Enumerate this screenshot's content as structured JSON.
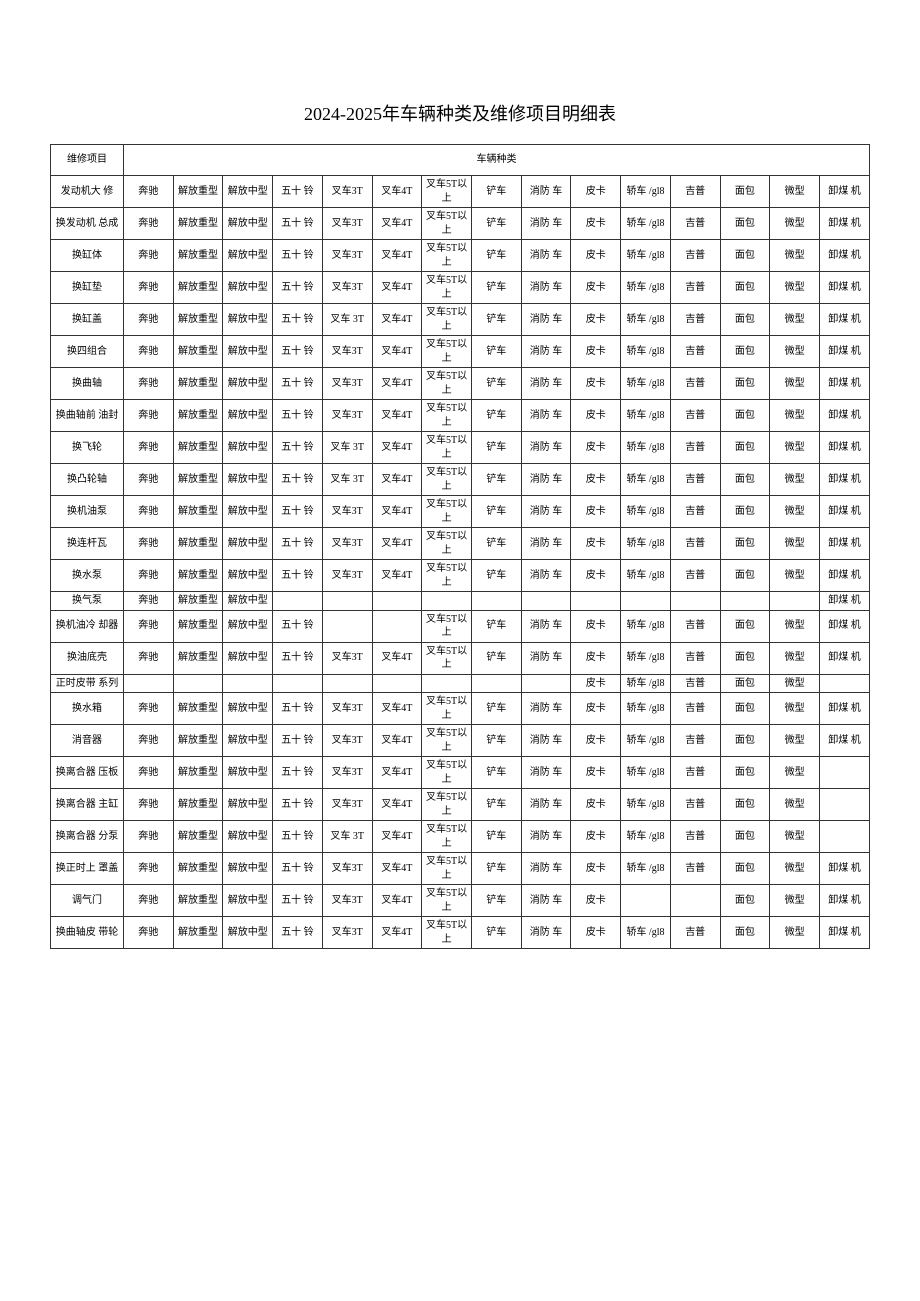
{
  "title": "2024-2025年车辆种类及维修项目明细表",
  "header": {
    "item": "维修项目",
    "category": "车辆种类"
  },
  "vehicles": [
    "奔驰",
    "解放重型",
    "解放中型",
    "五十 铃",
    "叉车3T",
    "叉车4T",
    "叉车5T以上",
    "铲车",
    "消防 车",
    "皮卡",
    "轿车 /gl8",
    "吉普",
    "面包",
    "微型",
    "卸煤 机"
  ],
  "rows": [
    {
      "name": "发动机大 修",
      "v": [
        "奔驰",
        "解放重型",
        "解放中型",
        "五十 铃",
        "叉车3T",
        "叉车4T",
        "叉车5T以上",
        "铲车",
        "消防 车",
        "皮卡",
        "轿车 /gl8",
        "吉普",
        "面包",
        "微型",
        "卸煤 机"
      ]
    },
    {
      "name": "换发动机 总成",
      "v": [
        "奔驰",
        "解放重型",
        "解放中型",
        "五十 铃",
        "叉车3T",
        "叉车4T",
        "叉车5T以上",
        "铲车",
        "消防 车",
        "皮卡",
        "轿车 /gl8",
        "吉普",
        "面包",
        "微型",
        "卸煤 机"
      ]
    },
    {
      "name": "换缸体",
      "v": [
        "奔驰",
        "解放重型",
        "解放中型",
        "五十 铃",
        "叉车3T",
        "叉车4T",
        "叉车5T以上",
        "铲车",
        "消防 车",
        "皮卡",
        "轿车 /gl8",
        "吉普",
        "面包",
        "微型",
        "卸煤 机"
      ]
    },
    {
      "name": "换缸垫",
      "v": [
        "奔驰",
        "解放重型",
        "解放中型",
        "五十 铃",
        "叉车3T",
        "叉车4T",
        "叉车5T以上",
        "铲车",
        "消防 车",
        "皮卡",
        "轿车 /gl8",
        "吉普",
        "面包",
        "微型",
        "卸煤 机"
      ]
    },
    {
      "name": "换缸盖",
      "v": [
        "奔驰",
        "解放重型",
        "解放中型",
        "五十 铃",
        "叉车 3T",
        "叉车4T",
        "叉车5T以上",
        "铲车",
        "消防 车",
        "皮卡",
        "轿车 /gl8",
        "吉普",
        "面包",
        "微型",
        "卸煤 机"
      ]
    },
    {
      "name": "换四组合",
      "v": [
        "奔驰",
        "解放重型",
        "解放中型",
        "五十 铃",
        "叉车3T",
        "叉车4T",
        "叉车5T以上",
        "铲车",
        "消防 车",
        "皮卡",
        "轿车 /gl8",
        "吉普",
        "面包",
        "微型",
        "卸煤 机"
      ]
    },
    {
      "name": "换曲轴",
      "v": [
        "奔驰",
        "解放重型",
        "解放中型",
        "五十 铃",
        "叉车3T",
        "叉车4T",
        "叉车5T以上",
        "铲车",
        "消防 车",
        "皮卡",
        "轿车 /gl8",
        "吉普",
        "面包",
        "微型",
        "卸煤 机"
      ]
    },
    {
      "name": "换曲轴前 油封",
      "v": [
        "奔驰",
        "解放重型",
        "解放中型",
        "五十 铃",
        "叉车3T",
        "叉车4T",
        "叉车5T以上",
        "铲车",
        "消防 车",
        "皮卡",
        "轿车 /gl8",
        "吉普",
        "面包",
        "微型",
        "卸煤 机"
      ]
    },
    {
      "name": "换飞轮",
      "v": [
        "奔驰",
        "解放重型",
        "解放中型",
        "五十 铃",
        "叉车 3T",
        "叉车4T",
        "叉车5T以上",
        "铲车",
        "消防 车",
        "皮卡",
        "轿车 /gl8",
        "吉普",
        "面包",
        "微型",
        "卸煤 机"
      ]
    },
    {
      "name": "换凸轮轴",
      "v": [
        "奔驰",
        "解放重型",
        "解放中型",
        "五十 铃",
        "叉车 3T",
        "叉车4T",
        "叉车5T以上",
        "铲车",
        "消防 车",
        "皮卡",
        "轿车 /gl8",
        "吉普",
        "面包",
        "微型",
        "卸煤 机"
      ]
    },
    {
      "name": "换机油泵",
      "v": [
        "奔驰",
        "解放重型",
        "解放中型",
        "五十 铃",
        "叉车3T",
        "叉车4T",
        "叉车5T以上",
        "铲车",
        "消防 车",
        "皮卡",
        "轿车 /gl8",
        "吉普",
        "面包",
        "微型",
        "卸煤 机"
      ]
    },
    {
      "name": "换连杆瓦",
      "v": [
        "奔驰",
        "解放重型",
        "解放中型",
        "五十 铃",
        "叉车3T",
        "叉车4T",
        "叉车5T以上",
        "铲车",
        "消防 车",
        "皮卡",
        "轿车 /gl8",
        "吉普",
        "面包",
        "微型",
        "卸煤 机"
      ]
    },
    {
      "name": "换水泵",
      "v": [
        "奔驰",
        "解放重型",
        "解放中型",
        "五十 铃",
        "叉车3T",
        "叉车4T",
        "叉车5T以上",
        "铲车",
        "消防 车",
        "皮卡",
        "轿车 /gl8",
        "吉普",
        "面包",
        "微型",
        "卸煤 机"
      ]
    },
    {
      "name": "换气泵",
      "v": [
        "奔驰",
        "解放重型",
        "解放中型",
        "",
        "",
        "",
        "",
        "",
        "",
        "",
        "",
        "",
        "",
        "",
        "卸煤 机"
      ]
    },
    {
      "name": "换机油冷 却器",
      "v": [
        "奔驰",
        "解放重型",
        "解放中型",
        "五十 铃",
        "",
        "",
        "叉车5T以上",
        "铲车",
        "消防 车",
        "皮卡",
        "轿车 /gl8",
        "吉普",
        "面包",
        "微型",
        "卸煤 机"
      ]
    },
    {
      "name": "换油底壳",
      "v": [
        "奔驰",
        "解放重型",
        "解放中型",
        "五十 铃",
        "叉车3T",
        "叉车4T",
        "叉车5T以上",
        "铲车",
        "消防 车",
        "皮卡",
        "轿车 /gl8",
        "吉普",
        "面包",
        "微型",
        "卸煤 机"
      ]
    },
    {
      "name": "正时皮带 系列",
      "v": [
        "",
        "",
        "",
        "",
        "",
        "",
        "",
        "",
        "",
        "皮卡",
        "轿车 /gl8",
        "吉普",
        "面包",
        "微型",
        ""
      ]
    },
    {
      "name": "换水箱",
      "v": [
        "奔驰",
        "解放重型",
        "解放中型",
        "五十 铃",
        "叉车3T",
        "叉车4T",
        "叉车5T以上",
        "铲车",
        "消防 车",
        "皮卡",
        "轿车 /gl8",
        "吉普",
        "面包",
        "微型",
        "卸煤 机"
      ]
    },
    {
      "name": "消音器",
      "v": [
        "奔驰",
        "解放重型",
        "解放中型",
        "五十 铃",
        "叉车3T",
        "叉车4T",
        "叉车5T以上",
        "铲车",
        "消防 车",
        "皮卡",
        "轿车 /gl8",
        "吉普",
        "面包",
        "微型",
        "卸煤 机"
      ]
    },
    {
      "name": "换离合器 压板",
      "v": [
        "奔驰",
        "解放重型",
        "解放中型",
        "五十 铃",
        "叉车3T",
        "叉车4T",
        "叉车5T以上",
        "铲车",
        "消防 车",
        "皮卡",
        "轿车 /gl8",
        "吉普",
        "面包",
        "微型",
        ""
      ]
    },
    {
      "name": "换离合器 主缸",
      "v": [
        "奔驰",
        "解放重型",
        "解放中型",
        "五十 铃",
        "叉车3T",
        "叉车4T",
        "叉车5T以上",
        "铲车",
        "消防 车",
        "皮卡",
        "轿车 /gl8",
        "吉普",
        "面包",
        "微型",
        ""
      ]
    },
    {
      "name": "换离合器 分泵",
      "v": [
        "奔驰",
        "解放重型",
        "解放中型",
        "五十 铃",
        "叉车 3T",
        "叉车4T",
        "叉车5T以上",
        "铲车",
        "消防 车",
        "皮卡",
        "轿车 /gl8",
        "吉普",
        "面包",
        "微型",
        ""
      ]
    },
    {
      "name": "换正时上 罩盖",
      "v": [
        "奔驰",
        "解放重型",
        "解放中型",
        "五十 铃",
        "叉车3T",
        "叉车4T",
        "叉车5T以上",
        "铲车",
        "消防 车",
        "皮卡",
        "轿车 /gl8",
        "吉普",
        "面包",
        "微型",
        "卸煤 机"
      ]
    },
    {
      "name": "调气门",
      "v": [
        "奔驰",
        "解放重型",
        "解放中型",
        "五十 铃",
        "叉车3T",
        "叉车4T",
        "叉车5T以上",
        "铲车",
        "消防 车",
        "皮卡",
        "",
        "",
        "面包",
        "微型",
        "卸煤 机"
      ]
    },
    {
      "name": "换曲轴皮 带轮",
      "v": [
        "奔驰",
        "解放重型",
        "解放中型",
        "五十 铃",
        "叉车3T",
        "叉车4T",
        "叉车5T以上",
        "铲车",
        "消防 车",
        "皮卡",
        "轿车 /gl8",
        "吉普",
        "面包",
        "微型",
        "卸煤 机"
      ]
    }
  ]
}
